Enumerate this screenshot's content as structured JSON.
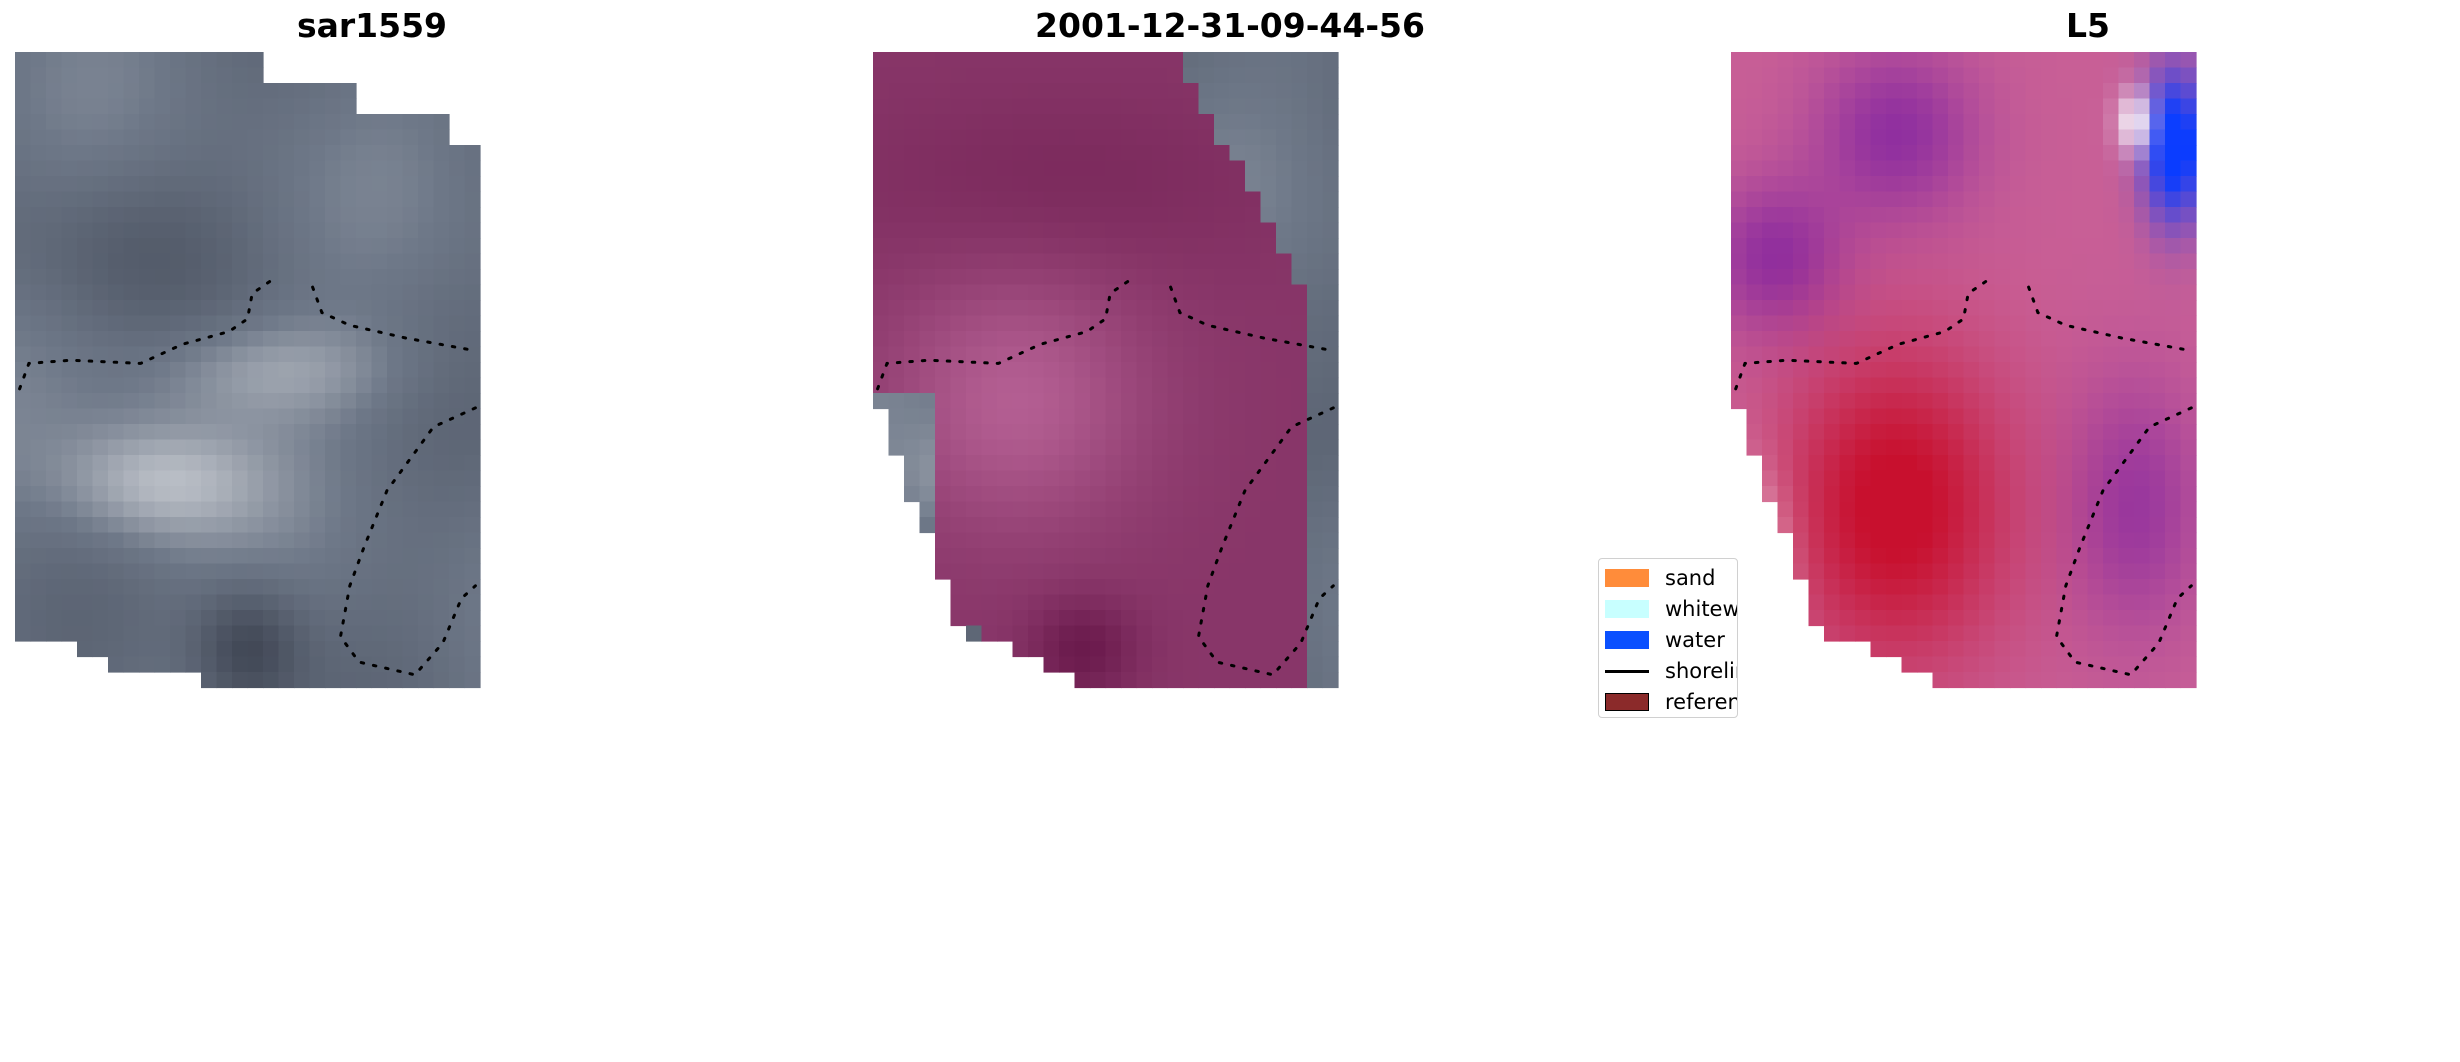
{
  "panels": [
    {
      "title": "sar1559",
      "colormap": "gray"
    },
    {
      "title": "2001-12-31-09-44-56",
      "colormap": "magenta"
    },
    {
      "title": "L5",
      "colormap": "diverging"
    }
  ],
  "legend": {
    "items": [
      {
        "label": "sand",
        "type": "patch",
        "color": "#ff8c3a"
      },
      {
        "label": "whitewater",
        "type": "patch",
        "color": "#c8ffff"
      },
      {
        "label": "water",
        "type": "patch",
        "color": "#0a50ff"
      },
      {
        "label": "shoreline",
        "type": "line",
        "color": "#000000"
      },
      {
        "label": "reference",
        "type": "patch",
        "color": "#8b2a2a"
      }
    ]
  },
  "colors": {
    "gray_dark": "#2e3340",
    "gray_mid": "#6e7888",
    "gray_light": "#ffffff",
    "magenta_dark": "#6a1a4c",
    "magenta_light": "#c06a9e",
    "l5_blue": "#0a3cff",
    "l5_purple": "#6a10a6",
    "l5_red": "#c8102e",
    "l5_white": "#ffffff"
  }
}
